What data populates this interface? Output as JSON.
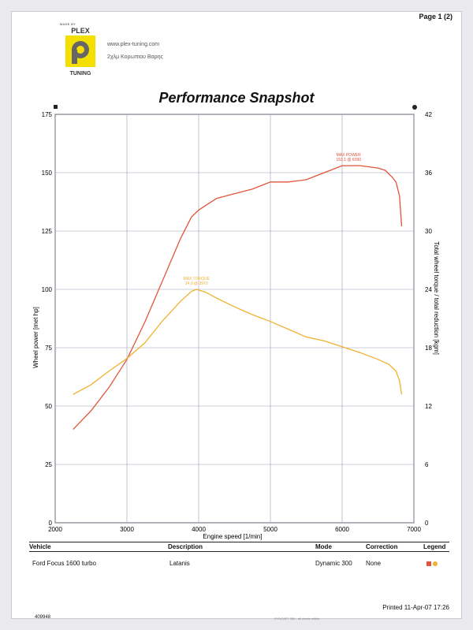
{
  "header": {
    "page_label": "Page 1 (2)",
    "logo_top_text": "MADE BY",
    "logo_brand": "PLEX",
    "logo_sub": "TUNING",
    "website": "www.plex-tuning.com",
    "address": "2χλμ Κορωπιου Βαρης"
  },
  "title": "Performance Snapshot",
  "table": {
    "headers": {
      "vehicle": "Vehicle",
      "description": "Description",
      "mode": "Mode",
      "correction": "Correction",
      "legend": "Legend"
    },
    "row": {
      "vehicle": "Ford Focus 1600 turbo",
      "description": "Latanis",
      "mode": "Dynamic 300",
      "correction": "None"
    },
    "legend_colors": [
      "#e0553a",
      "#f0b030"
    ]
  },
  "footer": {
    "printed": "Printed  11-Apr-07  17:26",
    "doc_id": "409948",
    "footnote": "DYNOJET 250 - all charts within"
  },
  "chart_data": {
    "type": "line",
    "xlabel": "Engine speed [1/min]",
    "ylabel": "Wheel power [met hp]",
    "y2label": "Total wheel torque / total reduction [kgm]",
    "xlim": [
      2000,
      7000
    ],
    "ylim": [
      0,
      175
    ],
    "y2lim": [
      0,
      42
    ],
    "x_ticks": [
      2000,
      3000,
      4000,
      5000,
      6000,
      7000
    ],
    "y_ticks": [
      0,
      25,
      50,
      75,
      100,
      125,
      150,
      175
    ],
    "y2_ticks": [
      0,
      6,
      12,
      18,
      24,
      30,
      36,
      42
    ],
    "grid": true,
    "series": [
      {
        "name": "power",
        "axis": "left",
        "color": "#e0553a",
        "x": [
          2250,
          2500,
          2750,
          3000,
          3250,
          3500,
          3750,
          3900,
          4000,
          4100,
          4250,
          4500,
          4750,
          5000,
          5250,
          5500,
          5750,
          6000,
          6100,
          6250,
          6500,
          6600,
          6700,
          6750,
          6800,
          6830
        ],
        "y": [
          40,
          48,
          58,
          70,
          86,
          104,
          122,
          131,
          134,
          136,
          139,
          141,
          143,
          146,
          146,
          147,
          150,
          153,
          153,
          153,
          152,
          151,
          148,
          146,
          140,
          127
        ]
      },
      {
        "name": "torque",
        "axis": "right",
        "color": "#f0b030",
        "x": [
          2250,
          2500,
          2750,
          3000,
          3250,
          3500,
          3750,
          3900,
          3970,
          4100,
          4250,
          4500,
          4750,
          5000,
          5250,
          5500,
          5750,
          6000,
          6250,
          6500,
          6650,
          6750,
          6800,
          6830
        ],
        "y": [
          13.2,
          14.2,
          15.6,
          16.9,
          18.5,
          20.8,
          22.8,
          23.8,
          24.0,
          23.7,
          23.1,
          22.2,
          21.4,
          20.7,
          19.9,
          19.1,
          18.7,
          18.1,
          17.5,
          16.8,
          16.3,
          15.6,
          14.6,
          13.2
        ]
      }
    ],
    "annotations": [
      {
        "series": "power",
        "label": "MAX POWER",
        "value": "153.1 @ 6090",
        "x": 6090,
        "y": 153.1
      },
      {
        "series": "torque",
        "label": "MAX TORQUE",
        "value": "24.0 @ 3970",
        "x": 3970,
        "y": 24.0
      }
    ]
  }
}
